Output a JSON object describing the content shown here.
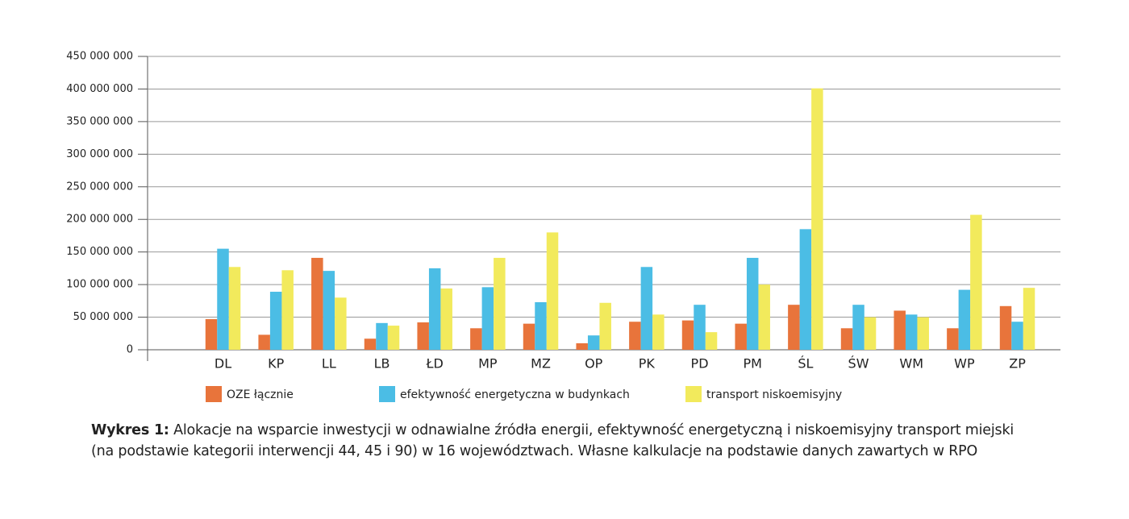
{
  "chart_data": {
    "type": "bar",
    "categories": [
      null,
      "DL",
      "KP",
      "LL",
      "LB",
      "ŁD",
      "MP",
      "MZ",
      "OP",
      "PK",
      "PD",
      "PM",
      "ŚL",
      "ŚW",
      "WM",
      "WP",
      "ZP"
    ],
    "series": [
      {
        "name": "OZE łącznie",
        "color": "#e8743b",
        "values": [
          null,
          47000000,
          23000000,
          141000000,
          17000000,
          42000000,
          33000000,
          40000000,
          10000000,
          43000000,
          45000000,
          40000000,
          69000000,
          33000000,
          60000000,
          33000000,
          67000000
        ]
      },
      {
        "name": "efektywność energetyczna w budynkach",
        "color": "#4bbde5",
        "values": [
          null,
          155000000,
          89000000,
          121000000,
          41000000,
          125000000,
          96000000,
          73000000,
          22000000,
          127000000,
          69000000,
          141000000,
          185000000,
          69000000,
          54000000,
          92000000,
          43000000
        ]
      },
      {
        "name": "transport niskoemisyjny",
        "color": "#f2ea5c",
        "values": [
          null,
          127000000,
          122000000,
          80000000,
          37000000,
          94000000,
          141000000,
          180000000,
          72000000,
          54000000,
          27000000,
          100000000,
          401000000,
          50000000,
          50000000,
          207000000,
          95000000
        ]
      }
    ],
    "ylim": [
      0,
      450000000
    ],
    "yticks": [
      0,
      {
        "value": 50000000,
        "label": "50 000 000"
      },
      {
        "value": 100000000,
        "label": "100 000 000"
      },
      {
        "value": 150000000,
        "label": "150 000 000"
      },
      {
        "value": 200000000,
        "label": "200 000 000"
      },
      {
        "value": 250000000,
        "label": "250 000 000"
      },
      {
        "value": 300000000,
        "label": "300 000 000"
      },
      {
        "value": 350000000,
        "label": "350 000 000"
      },
      {
        "value": 400000000,
        "label": "400 000 000"
      },
      {
        "value": 450000000,
        "label": "450 000 000"
      }
    ],
    "grid": true,
    "legend": "bottom",
    "caption_label": "Wykres 1:",
    "caption_lines": [
      "Alokacje na wsparcie inwestycji w odnawialne źródła energii, efektywność energetyczną i niskoemisyjny transport miejski",
      "(na podstawie kategorii interwencji 44, 45 i 90) w 16 województwach. Własne kalkulacje na podstawie danych zawartych w RPO"
    ]
  }
}
